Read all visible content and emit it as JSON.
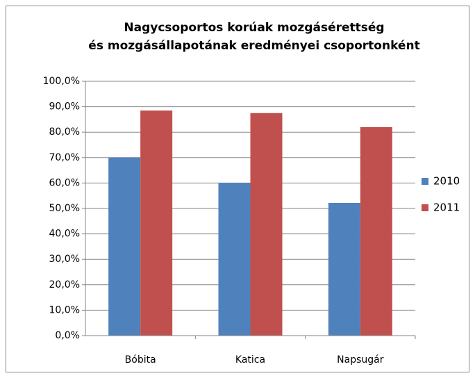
{
  "chart_data": {
    "type": "bar",
    "title": [
      "Nagycsoportos korúak mozgásérettség",
      "és mozgásállapotának eredményei csoportonként"
    ],
    "categories": [
      "Bóbita",
      "Katica",
      "Napsugár"
    ],
    "series": [
      {
        "name": "2010",
        "color": "#4f81bd",
        "values": [
          70,
          60,
          52.2
        ]
      },
      {
        "name": "2011",
        "color": "#c0504d",
        "values": [
          88.5,
          87.5,
          82
        ]
      }
    ],
    "ylim": [
      0,
      100
    ],
    "yticks": [
      {
        "value": 0,
        "label": "0,0%"
      },
      {
        "value": 10,
        "label": "10,0%"
      },
      {
        "value": 20,
        "label": "20,0%"
      },
      {
        "value": 30,
        "label": "30,0%"
      },
      {
        "value": 40,
        "label": "40,0%"
      },
      {
        "value": 50,
        "label": "50,0%"
      },
      {
        "value": 60,
        "label": "60,0%"
      },
      {
        "value": 70,
        "label": "70,0%"
      },
      {
        "value": 80,
        "label": "80,0%"
      },
      {
        "value": 90,
        "label": "90,0%"
      },
      {
        "value": 100,
        "label": "100,0%"
      }
    ],
    "grid": true,
    "legend": "right"
  }
}
